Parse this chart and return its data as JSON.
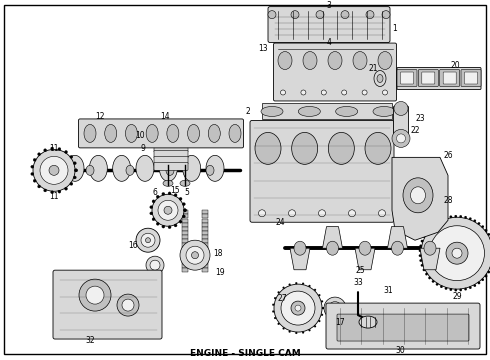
{
  "title": "ENGINE - SINGLE CAM",
  "title_fontsize": 6.5,
  "title_fontweight": "bold",
  "background_color": "#ffffff",
  "text_color": "#000000",
  "line_color": "#000000",
  "fig_width": 4.9,
  "fig_height": 3.6,
  "dpi": 100,
  "lw": 0.6,
  "fc_light": "#f0f0f0",
  "fc_mid": "#d8d8d8",
  "fc_dark": "#c0c0c0",
  "label_fs": 5.2,
  "label_color": "#000000"
}
